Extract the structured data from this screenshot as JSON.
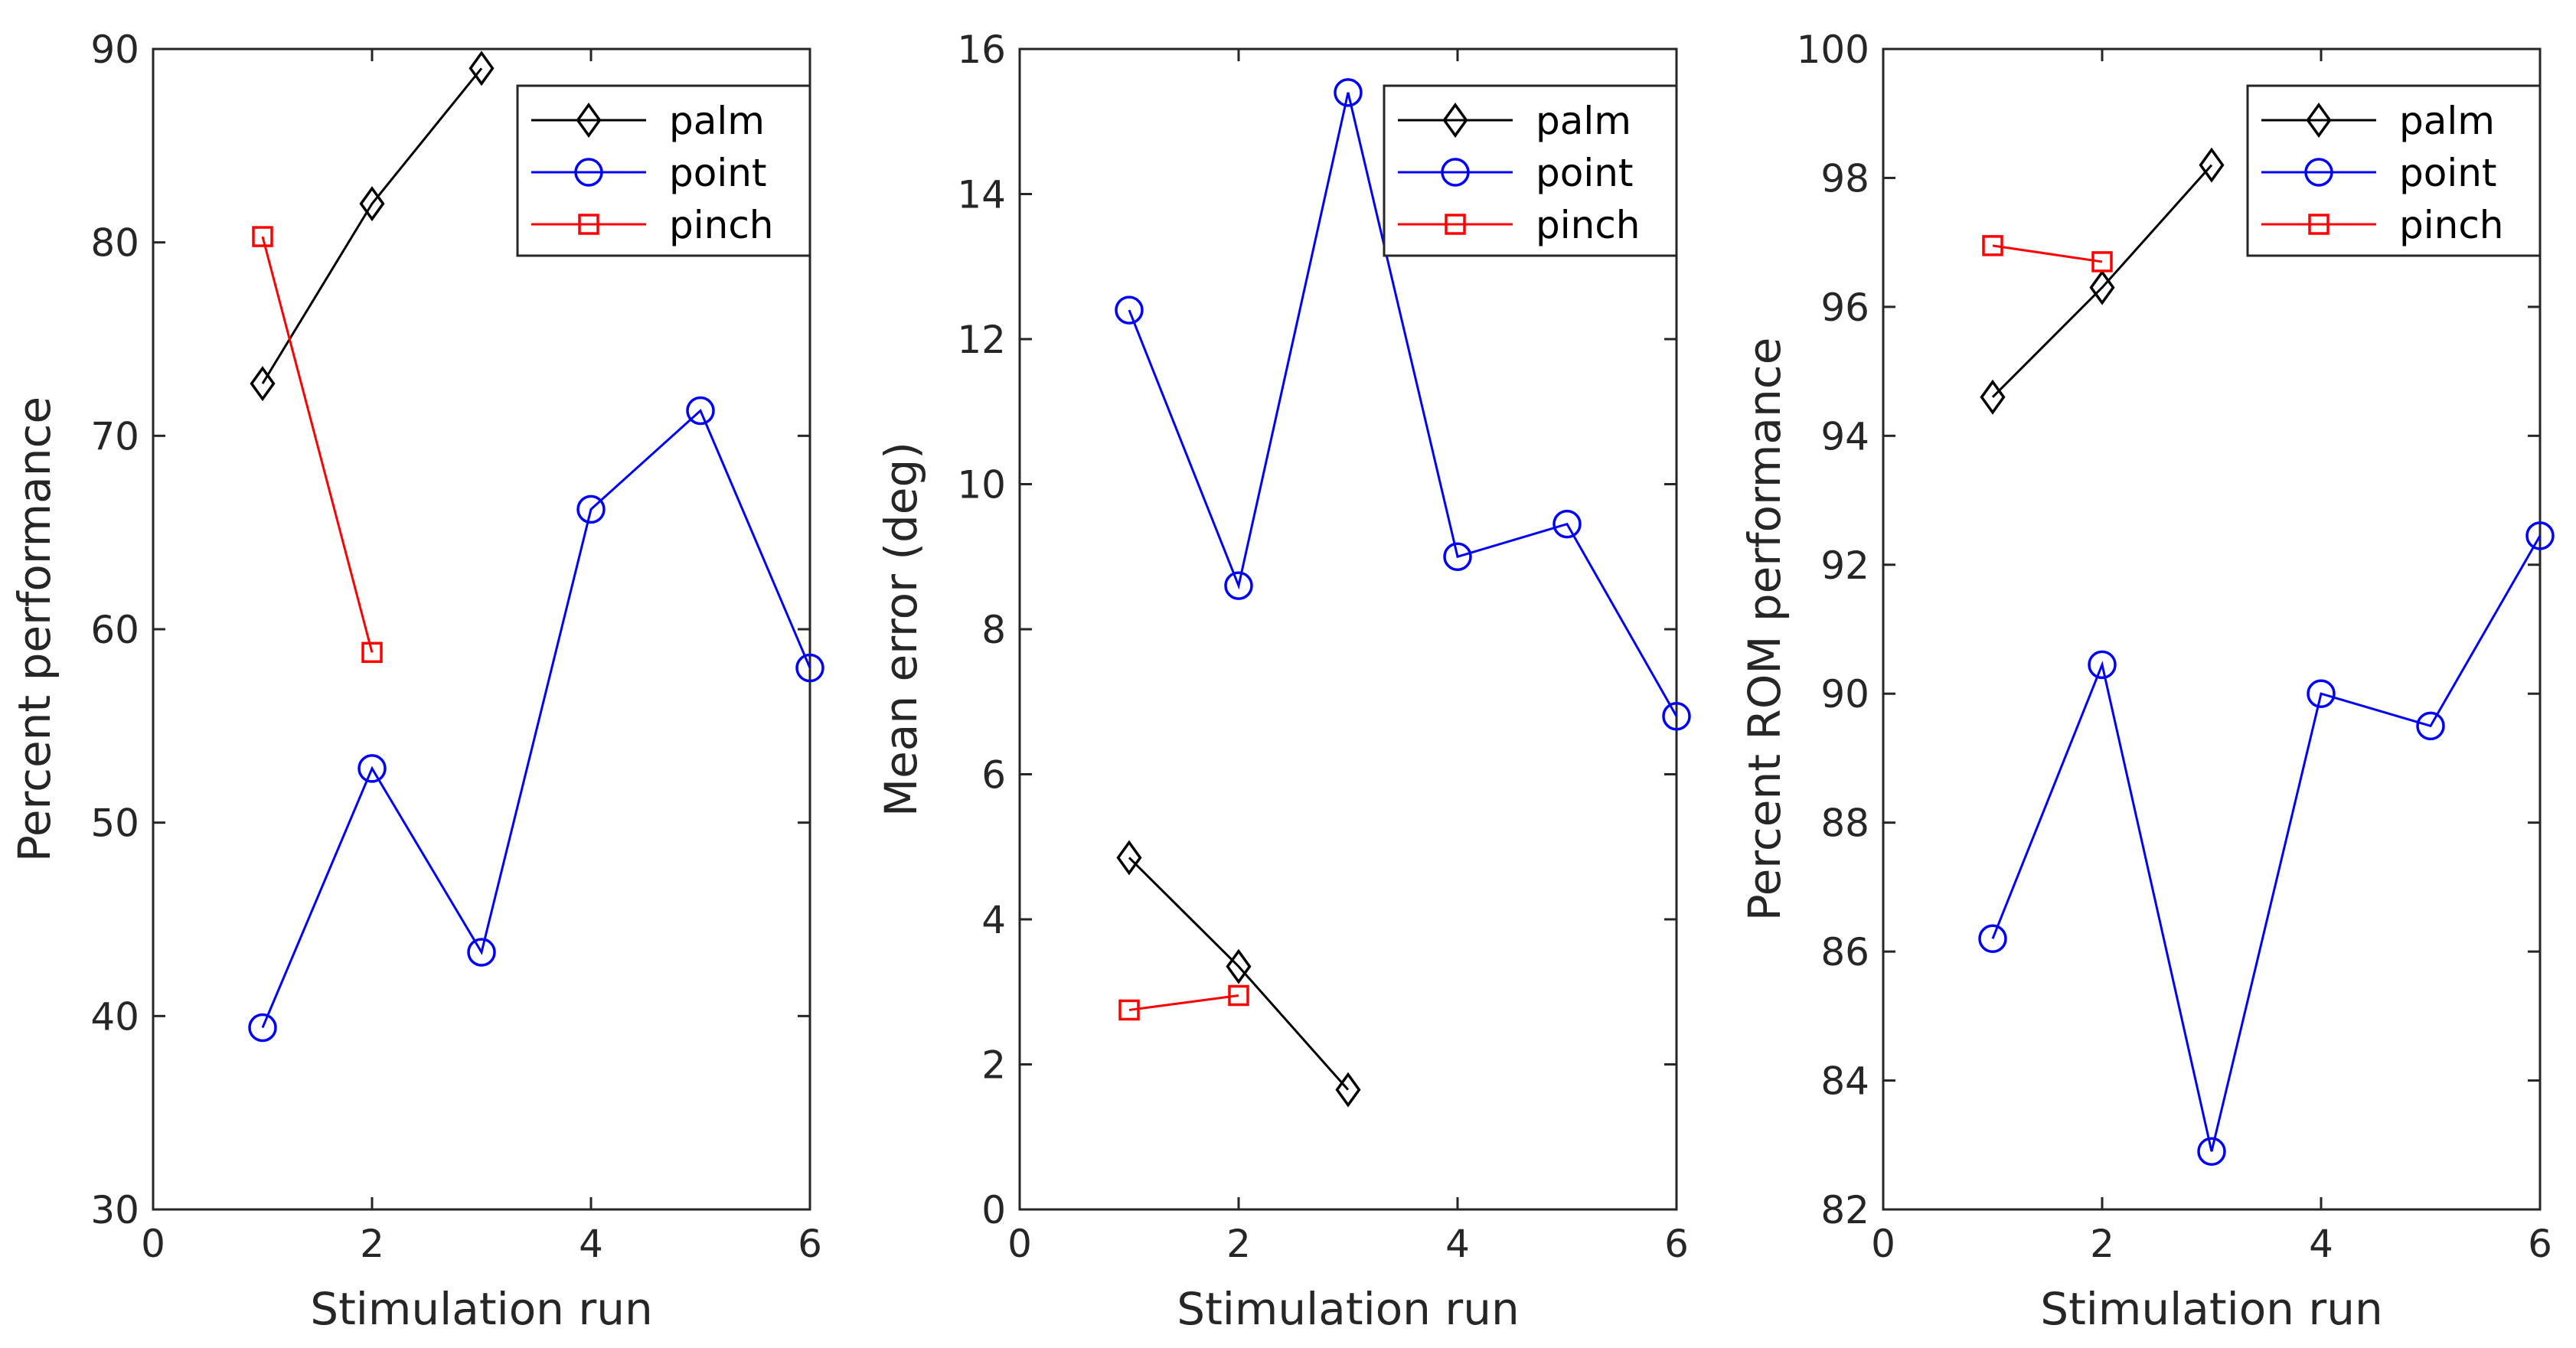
{
  "chart_data": [
    {
      "type": "line",
      "title": "",
      "xlabel": "Stimulation run",
      "ylabel": "Percent performance",
      "xlim": [
        0,
        6
      ],
      "ylim": [
        30,
        90
      ],
      "xticks": [
        "0",
        "2",
        "4",
        "6"
      ],
      "yticks": [
        "30",
        "40",
        "50",
        "60",
        "70",
        "80",
        "90"
      ],
      "grid": false,
      "legend_position": "top-right",
      "series": [
        {
          "name": "palm",
          "color": "#000000",
          "marker": "diamond",
          "x": [
            1,
            2,
            3
          ],
          "y": [
            72.7,
            82.0,
            89.0
          ]
        },
        {
          "name": "point",
          "color": "#0000ff",
          "marker": "circle",
          "x": [
            1,
            2,
            3,
            4,
            5,
            6
          ],
          "y": [
            39.4,
            52.8,
            43.3,
            66.2,
            71.3,
            58.0
          ]
        },
        {
          "name": "pinch",
          "color": "#ff0000",
          "marker": "square",
          "x": [
            1,
            2
          ],
          "y": [
            80.3,
            58.8
          ]
        }
      ]
    },
    {
      "type": "line",
      "title": "",
      "xlabel": "Stimulation run",
      "ylabel": "Mean error (deg)",
      "xlim": [
        0,
        6
      ],
      "ylim": [
        0,
        16
      ],
      "xticks": [
        "0",
        "2",
        "4",
        "6"
      ],
      "yticks": [
        "0",
        "2",
        "4",
        "6",
        "8",
        "10",
        "12",
        "14",
        "16"
      ],
      "grid": false,
      "legend_position": "top-right",
      "series": [
        {
          "name": "palm",
          "color": "#000000",
          "marker": "diamond",
          "x": [
            1,
            2,
            3
          ],
          "y": [
            4.85,
            3.35,
            1.65
          ]
        },
        {
          "name": "point",
          "color": "#0000ff",
          "marker": "circle",
          "x": [
            1,
            2,
            3,
            4,
            5,
            6
          ],
          "y": [
            12.4,
            8.6,
            15.4,
            9.0,
            9.45,
            6.8
          ]
        },
        {
          "name": "pinch",
          "color": "#ff0000",
          "marker": "square",
          "x": [
            1,
            2
          ],
          "y": [
            2.75,
            2.95
          ]
        }
      ]
    },
    {
      "type": "line",
      "title": "",
      "xlabel": "Stimulation run",
      "ylabel": "Percent ROM performance",
      "xlim": [
        0,
        6
      ],
      "ylim": [
        82,
        100
      ],
      "xticks": [
        "0",
        "2",
        "4",
        "6"
      ],
      "yticks": [
        "82",
        "84",
        "86",
        "88",
        "90",
        "92",
        "94",
        "96",
        "98",
        "100"
      ],
      "grid": false,
      "legend_position": "top-right",
      "series": [
        {
          "name": "palm",
          "color": "#000000",
          "marker": "diamond",
          "x": [
            1,
            2,
            3
          ],
          "y": [
            94.6,
            96.3,
            98.2
          ]
        },
        {
          "name": "point",
          "color": "#0000ff",
          "marker": "circle",
          "x": [
            1,
            2,
            3,
            4,
            5,
            6
          ],
          "y": [
            86.2,
            90.45,
            82.9,
            90.0,
            89.5,
            92.45
          ]
        },
        {
          "name": "pinch",
          "color": "#ff0000",
          "marker": "square",
          "x": [
            1,
            2
          ],
          "y": [
            96.95,
            96.7
          ]
        }
      ]
    }
  ]
}
